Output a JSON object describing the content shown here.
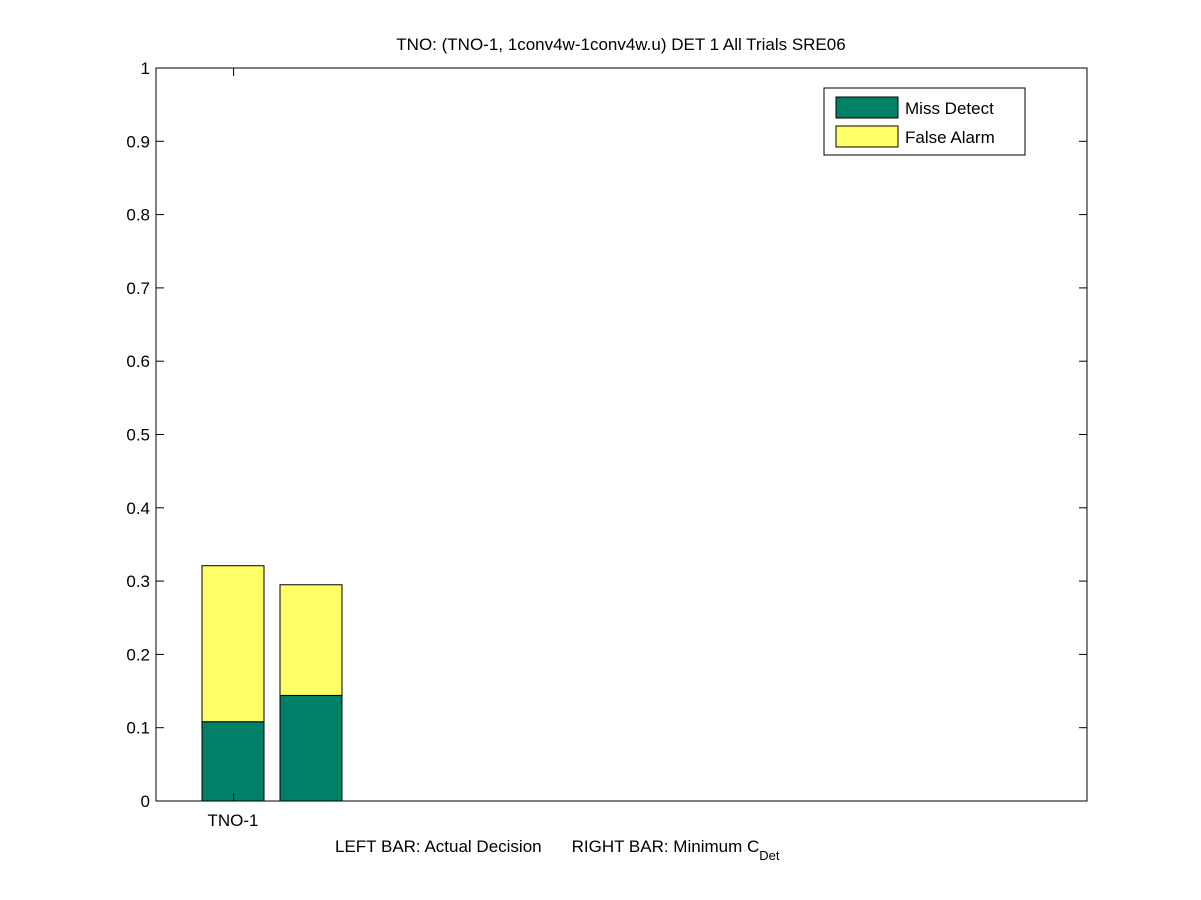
{
  "chart_data": {
    "type": "bar",
    "stacked": true,
    "title": "TNO: (TNO-1, 1conv4w-1conv4w.u) DET 1 All Trials SRE06",
    "xlabel": {
      "left_part": "LEFT BAR: Actual Decision",
      "right_part": "RIGHT BAR: Minimum C",
      "right_subscript": "Det"
    },
    "ylabel": "",
    "ylim": [
      0,
      1
    ],
    "yticks": [
      "0",
      "0.1",
      "0.2",
      "0.3",
      "0.4",
      "0.5",
      "0.6",
      "0.7",
      "0.8",
      "0.9",
      "1"
    ],
    "ytick_values": [
      0,
      0.1,
      0.2,
      0.3,
      0.4,
      0.5,
      0.6,
      0.7,
      0.8,
      0.9,
      1
    ],
    "categories": [
      "TNO-1"
    ],
    "bars": [
      {
        "category": "TNO-1",
        "which": "actual",
        "miss_detect": 0.108,
        "false_alarm": 0.213
      },
      {
        "category": "TNO-1",
        "which": "minimum",
        "miss_detect": 0.144,
        "false_alarm": 0.151
      }
    ],
    "series": [
      {
        "name": "Miss Detect",
        "color": "#008066"
      },
      {
        "name": "False Alarm",
        "color": "#ffff66"
      }
    ],
    "legend_position": "top-right",
    "grid": false
  }
}
